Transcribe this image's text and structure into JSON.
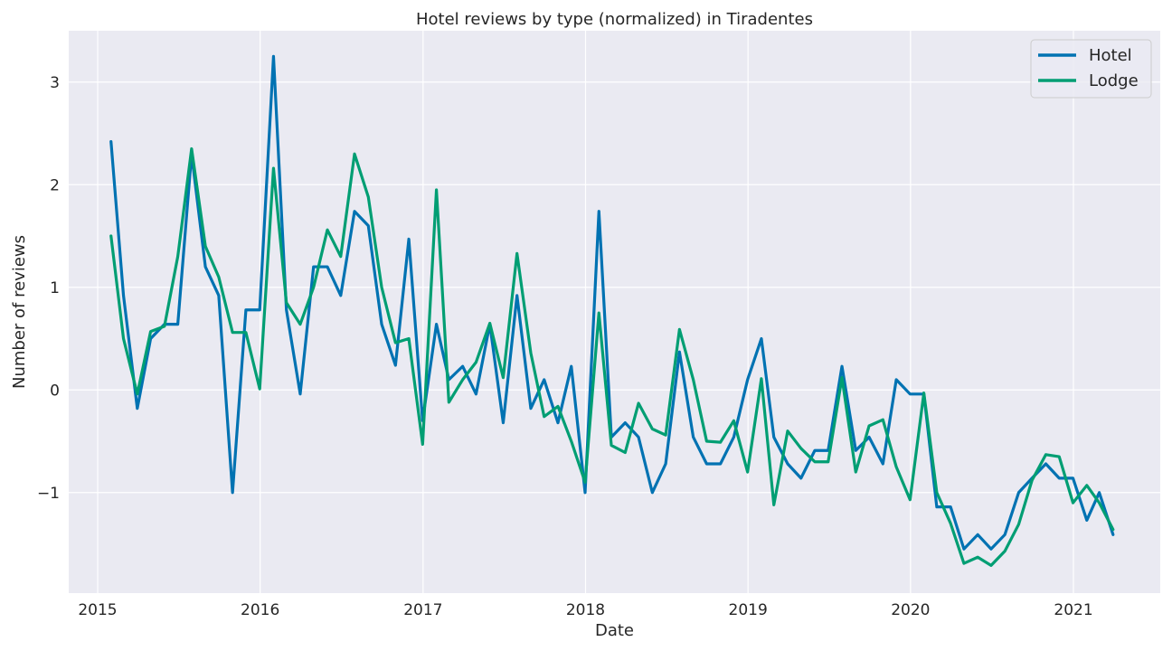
{
  "chart_data": {
    "type": "line",
    "title": "Hotel reviews by type (normalized) in Tiradentes",
    "xlabel": "Date",
    "ylabel": "Number of reviews",
    "xlim": [
      "2014-10-28",
      "2021-07-15"
    ],
    "ylim": [
      -1.98,
      3.5
    ],
    "x_ticks": [
      "2015-01-01",
      "2016-01-01",
      "2017-01-01",
      "2018-01-01",
      "2019-01-01",
      "2020-01-01",
      "2021-01-01"
    ],
    "x_tick_labels": [
      "2015",
      "2016",
      "2017",
      "2018",
      "2019",
      "2020",
      "2021"
    ],
    "y_ticks": [
      -1,
      0,
      1,
      2,
      3
    ],
    "y_tick_labels": [
      "−1",
      "0",
      "1",
      "2",
      "3"
    ],
    "grid": true,
    "legend_position": "top-right",
    "x": [
      "2015-01-31",
      "2015-02-28",
      "2015-03-31",
      "2015-04-30",
      "2015-05-31",
      "2015-06-30",
      "2015-07-31",
      "2015-08-31",
      "2015-09-30",
      "2015-10-31",
      "2015-11-30",
      "2015-12-31",
      "2016-01-31",
      "2016-02-29",
      "2016-03-31",
      "2016-04-30",
      "2016-05-31",
      "2016-06-30",
      "2016-07-31",
      "2016-08-31",
      "2016-09-30",
      "2016-10-31",
      "2016-11-30",
      "2016-12-31",
      "2017-01-31",
      "2017-02-28",
      "2017-03-31",
      "2017-04-30",
      "2017-05-31",
      "2017-06-30",
      "2017-07-31",
      "2017-08-31",
      "2017-09-30",
      "2017-10-31",
      "2017-11-30",
      "2017-12-31",
      "2018-01-31",
      "2018-02-28",
      "2018-03-31",
      "2018-04-30",
      "2018-05-31",
      "2018-06-30",
      "2018-07-31",
      "2018-08-31",
      "2018-09-30",
      "2018-10-31",
      "2018-11-30",
      "2018-12-31",
      "2019-01-31",
      "2019-02-28",
      "2019-03-31",
      "2019-04-30",
      "2019-05-31",
      "2019-06-30",
      "2019-07-31",
      "2019-08-31",
      "2019-09-30",
      "2019-10-31",
      "2019-11-30",
      "2019-12-31",
      "2020-01-31",
      "2020-02-29",
      "2020-03-31",
      "2020-04-30",
      "2020-05-31",
      "2020-06-30",
      "2020-07-31",
      "2020-08-31",
      "2020-09-30",
      "2020-10-31",
      "2020-11-30",
      "2020-12-31",
      "2021-01-31",
      "2021-02-28",
      "2021-03-31"
    ],
    "series": [
      {
        "name": "Hotel",
        "color": "#0072b2",
        "values": [
          2.42,
          0.92,
          -0.18,
          0.5,
          0.64,
          0.64,
          2.3,
          1.2,
          0.92,
          -1.0,
          0.78,
          0.78,
          3.25,
          0.78,
          -0.04,
          1.2,
          1.2,
          0.92,
          1.74,
          1.6,
          0.64,
          0.24,
          1.47,
          -0.3,
          0.64,
          0.1,
          0.23,
          -0.04,
          0.64,
          -0.32,
          0.92,
          -0.18,
          0.1,
          -0.32,
          0.23,
          -1.0,
          1.74,
          -0.46,
          -0.32,
          -0.46,
          -1.0,
          -0.72,
          0.37,
          -0.46,
          -0.72,
          -0.72,
          -0.46,
          0.1,
          0.5,
          -0.46,
          -0.72,
          -0.86,
          -0.59,
          -0.59,
          0.23,
          -0.59,
          -0.46,
          -0.72,
          0.1,
          -0.04,
          -0.04,
          -1.14,
          -1.14,
          -1.55,
          -1.41,
          -1.55,
          -1.41,
          -1.0,
          -0.86,
          -0.72,
          -0.86,
          -0.86,
          -1.27,
          -1.0,
          -1.41
        ]
      },
      {
        "name": "Lodge",
        "color": "#009e73",
        "values": [
          1.5,
          0.5,
          -0.04,
          0.57,
          0.62,
          1.3,
          2.35,
          1.4,
          1.1,
          0.56,
          0.56,
          0.01,
          2.16,
          0.85,
          0.64,
          1.0,
          1.56,
          1.3,
          2.3,
          1.88,
          1.0,
          0.46,
          0.5,
          -0.53,
          1.95,
          -0.12,
          0.1,
          0.27,
          0.65,
          0.12,
          1.33,
          0.36,
          -0.26,
          -0.16,
          -0.5,
          -0.9,
          0.75,
          -0.54,
          -0.61,
          -0.13,
          -0.38,
          -0.44,
          0.59,
          0.1,
          -0.5,
          -0.51,
          -0.3,
          -0.8,
          0.11,
          -1.12,
          -0.4,
          -0.57,
          -0.7,
          -0.7,
          0.12,
          -0.8,
          -0.35,
          -0.29,
          -0.75,
          -1.07,
          -0.03,
          -1.0,
          -1.3,
          -1.69,
          -1.63,
          -1.71,
          -1.57,
          -1.31,
          -0.88,
          -0.63,
          -0.65,
          -1.1,
          -0.93,
          -1.1,
          -1.36
        ]
      }
    ]
  }
}
